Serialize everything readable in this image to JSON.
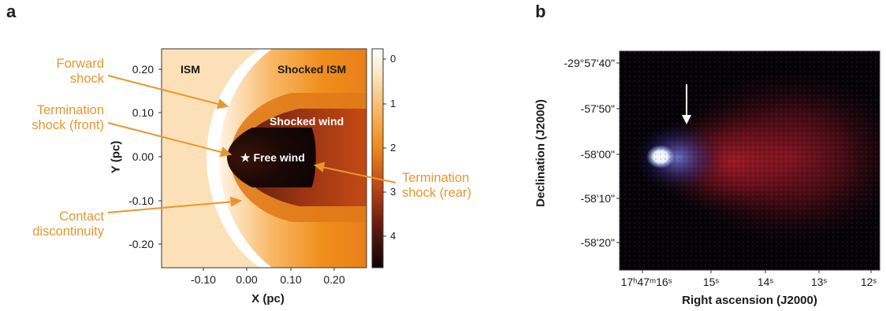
{
  "panel_a": {
    "letter": "a",
    "x_axis": {
      "label": "X (pc)",
      "ticks": [
        "-0.10",
        "0.00",
        "0.10",
        "0.20"
      ]
    },
    "y_axis": {
      "label": "Y (pc)",
      "ticks": [
        "0.20",
        "0.10",
        "0.00",
        "-0.10",
        "-0.20"
      ]
    },
    "colorbar_ticks": [
      "0",
      "1",
      "2",
      "3",
      "4"
    ],
    "region_labels": {
      "ism": "ISM",
      "shocked_ism": "Shocked ISM",
      "shocked_wind": "Shocked wind",
      "free_wind": "★ Free wind"
    },
    "callouts": {
      "forward_shock": [
        "Forward",
        "shock"
      ],
      "termination_front": [
        "Termination",
        "shock (front)"
      ],
      "contact": [
        "Contact",
        "discontinuity"
      ],
      "termination_rear": [
        "Termination",
        "shock (rear)"
      ]
    },
    "colors": {
      "callout": "#E8962E",
      "ism": "#FCE1B8",
      "shocked_ism": "#F0921E",
      "shocked_wind": "#7A2A12",
      "free_wind": "#140705"
    }
  },
  "panel_b": {
    "letter": "b",
    "y_axis": {
      "label": "Declination (J2000)",
      "ticks": [
        "-29°57'40\"",
        "-57'50\"",
        "-58'00\"",
        "-58'10\"",
        "-58'20\""
      ]
    },
    "x_axis": {
      "label": "Right ascension (J2000)",
      "ticks": [
        "17ʰ47ᵐ16ˢ",
        "15ˢ",
        "14ˢ",
        "13ˢ",
        "12ˢ"
      ]
    },
    "colors": {
      "background": "#050308",
      "nebula": "#B0202C",
      "source": "#F4F8FF"
    }
  }
}
